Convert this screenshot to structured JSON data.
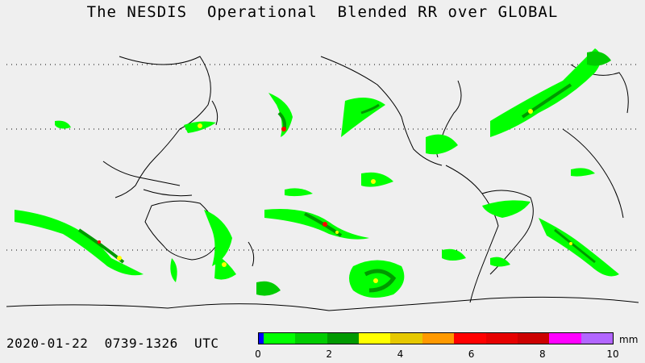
{
  "title": "The NESDIS  Operational  Blended RR over GLOBAL",
  "datetime": "2020-01-22  0739-1326  UTC",
  "legend": {
    "unit": "mm",
    "ticks": [
      "0",
      "2",
      "4",
      "6",
      "8",
      "10"
    ],
    "colors": [
      "#0000ff",
      "#00ff00",
      "#00cc00",
      "#009900",
      "#ffff00",
      "#e6c800",
      "#ff9900",
      "#ff0000",
      "#e60000",
      "#cc0000",
      "#ff00ff",
      "#b266ff"
    ]
  },
  "colors": {
    "background": "#efefef",
    "coastline": "#000000",
    "rain_light": "#00ff00",
    "rain_moderate": "#00b400",
    "rain_heavy": "#008c00",
    "rain_intense": "#ffff00",
    "rain_extreme": "#ff0000"
  }
}
